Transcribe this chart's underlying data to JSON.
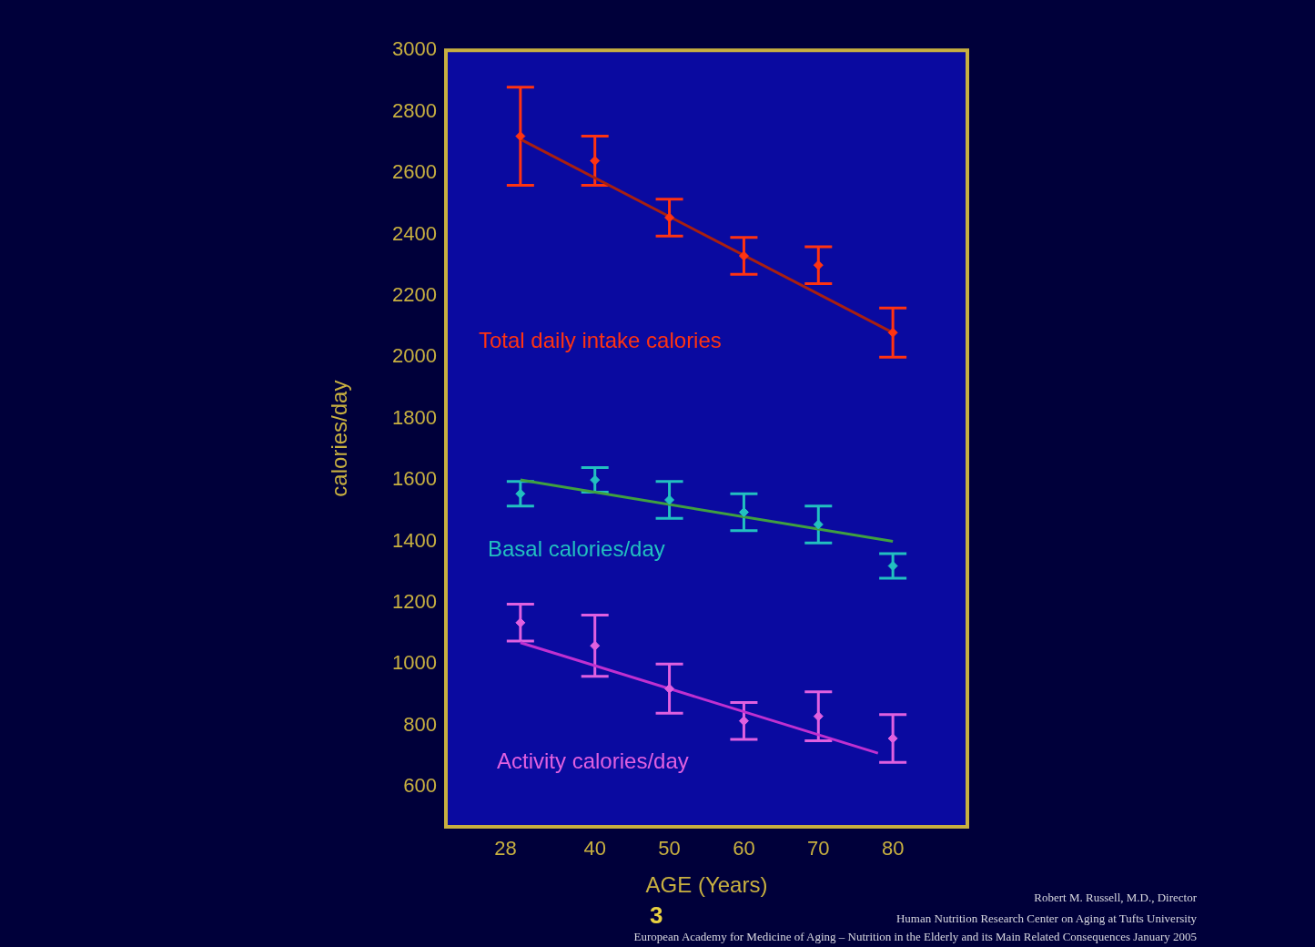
{
  "chart_data": {
    "type": "scatter",
    "xlabel": "AGE (Years)",
    "ylabel": "calories/day",
    "xlim": [
      20,
      90
    ],
    "ylim": [
      470,
      3000
    ],
    "xticks": [
      28,
      40,
      50,
      60,
      70,
      80
    ],
    "yticks": [
      600,
      800,
      1000,
      1200,
      1400,
      1600,
      1800,
      2000,
      2200,
      2400,
      2600,
      2800,
      3000
    ],
    "marker": "diamond",
    "series": [
      {
        "name": "Total daily intake calories",
        "color": "#ff3311",
        "x": [
          30,
          40,
          50,
          60,
          70,
          80
        ],
        "values": [
          2720,
          2640,
          2455,
          2330,
          2300,
          2080
        ],
        "errors": [
          160,
          80,
          60,
          60,
          60,
          80
        ]
      },
      {
        "type": "line",
        "color": "#a82010",
        "marker": "none",
        "x": [
          30,
          80
        ],
        "values": [
          2710,
          2080
        ]
      },
      {
        "name": "Basal calories/day",
        "color": "#22c0c0",
        "x": [
          30,
          40,
          50,
          60,
          70,
          80
        ],
        "values": [
          1555,
          1600,
          1535,
          1495,
          1455,
          1320
        ],
        "errors": [
          40,
          40,
          60,
          60,
          60,
          40
        ]
      },
      {
        "type": "line",
        "color": "#40a040",
        "marker": "none",
        "x": [
          30,
          80
        ],
        "values": [
          1600,
          1400
        ]
      },
      {
        "name": "Activity calories/day",
        "color": "#e060e0",
        "x": [
          30,
          40,
          50,
          60,
          70,
          80
        ],
        "values": [
          1135,
          1060,
          920,
          815,
          830,
          758
        ],
        "errors": [
          60,
          100,
          80,
          60,
          80,
          78
        ]
      },
      {
        "type": "line",
        "color": "#c030d0",
        "marker": "none",
        "x": [
          30,
          78
        ],
        "values": [
          1070,
          710
        ]
      }
    ],
    "annotations": [
      "3",
      "Robert M. Russell, M.D., Director",
      "Human Nutrition Research Center on Aging at Tufts University",
      "European Academy for Medicine of Aging – Nutrition in the Elderly and its Main Related Consequences January 2005"
    ]
  }
}
